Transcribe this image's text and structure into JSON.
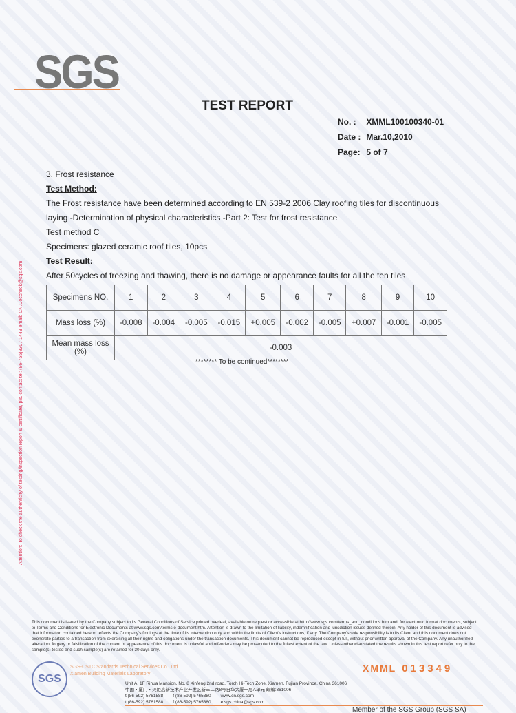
{
  "header": {
    "logo": "SGS",
    "title": "TEST REPORT",
    "meta": [
      {
        "label": "No. :",
        "value": "XMML100100340-01"
      },
      {
        "label": "Date :",
        "value": "Mar.10,2010"
      },
      {
        "label": "Page:",
        "value": "5 of 7"
      }
    ]
  },
  "section": {
    "heading": "3. Frost resistance",
    "method_label": "Test Method:",
    "method_text": "The Frost resistance have been determined according to EN 539-2 2006 Clay roofing tiles for discontinuous laying -Determination of physical characteristics -Part 2: Test for frost resistance",
    "method": "Test method C",
    "specimens": "Specimens: glazed ceramic roof tiles, 10pcs",
    "result_label": "Test Result:",
    "result_text": "After 50cycles of freezing and thawing, there is no damage or appearance faults for all the ten tiles"
  },
  "table": {
    "header_label": "Specimens NO.",
    "specimens": [
      "1",
      "2",
      "3",
      "4",
      "5",
      "6",
      "7",
      "8",
      "9",
      "10"
    ],
    "mass_label": "Mass loss (%)",
    "mass_loss": [
      "-0.008",
      "-0.004",
      "-0.005",
      "-0.015",
      "+0.005",
      "-0.002",
      "-0.005",
      "+0.007",
      "-0.001",
      "-0.005"
    ],
    "mean_label": "Mean mass loss (%)",
    "mean": "-0.003"
  },
  "continued": "******** To be continued********",
  "side_note": "Attention: To check the authenticity of testing/inspection report & certificate, pls. contact tel: (86-755)8307 1443 email: CN.Doccheck@sgs.com",
  "footer": {
    "disclaimer": "This document is issued by the Company subject to its General Conditions of Service printed overleaf, available on request or accessible at http://www.sgs.com/terms_and_conditions.htm and, for electronic format documents, subject to Terms and Conditions for Electronic Documents at www.sgs.com/terms e-document.htm. Attention is drawn to the limitation of liability, indemnification and jurisdiction issues defined therein. Any holder of this document is advised that information contained hereon reflects the Company's findings at the time of its intervention only and within the limits of Client's instructions, if any. The Company's sole responsibility is to its Client and this document does not exonerate parties to a transaction from exercising all their rights and obligations under the transaction documents. This document cannot be reproduced except in full, without prior written approval of the Company. Any unauthorized alteration, forgery or falsification of the content or appearance of this document is unlawful and offenders may be prosecuted to the fullest extent of the law. Unless otherwise stated the results shown in this test report refer only to the sample(s) tested and such sample(s) are retained for 30 days only.",
    "seal": "SGS",
    "serial_prefix": "XMML",
    "serial_number": "013349",
    "company_en": "SGS-CSTC Standards Technical Services Co., Ltd.",
    "company_lab": "Xiamen Building Materials Laboratory",
    "address_en": "Unit A, 1F Rihua Mansion, No. 8 Xinfeng 2nd road, Torch Hi-Tech Zone, Xiamen, Fujian Province, China 361006",
    "address_cn": "中国・厦门・火炬高新技术产业开发区新丰二路8号日华大厦一层A单元 邮编:361006",
    "tel": "t (86-592) 5761588",
    "fax": "f (86-592) 5765380",
    "web": "www.cn.sgs.com",
    "email": "e sgs.china@sgs.com",
    "member": "Member of the SGS Group (SGS SA)"
  },
  "colors": {
    "accent": "#e87a3a",
    "seal": "#4b5fa6"
  }
}
